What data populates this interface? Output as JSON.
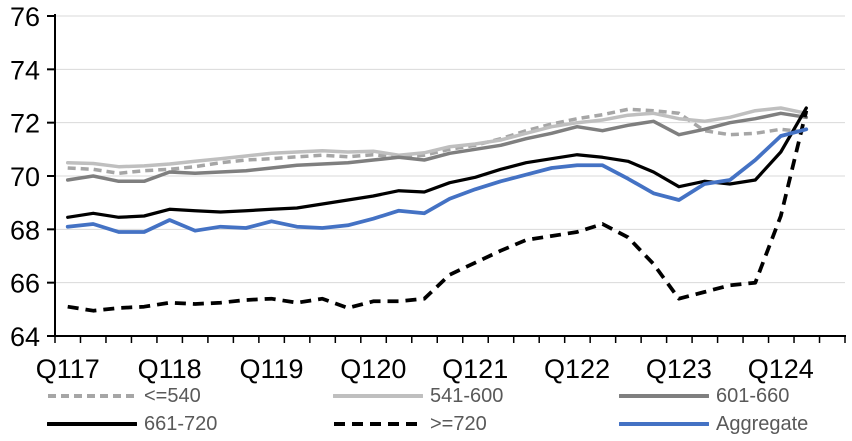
{
  "chart_data": {
    "type": "line",
    "title": "",
    "xlabel": "",
    "ylabel": "",
    "ylim": [
      64,
      76
    ],
    "y_ticks": [
      64,
      66,
      68,
      70,
      72,
      74,
      76
    ],
    "grid": true,
    "legend_position": "bottom",
    "x_tick_labels": [
      "Q117",
      "Q118",
      "Q119",
      "Q120",
      "Q121",
      "Q122",
      "Q123",
      "Q124"
    ],
    "categories": [
      "Q117",
      "Q217",
      "Q317",
      "Q417",
      "Q118",
      "Q218",
      "Q318",
      "Q418",
      "Q119",
      "Q219",
      "Q319",
      "Q419",
      "Q120",
      "Q220",
      "Q320",
      "Q420",
      "Q121",
      "Q221",
      "Q321",
      "Q421",
      "Q122",
      "Q222",
      "Q322",
      "Q422",
      "Q123",
      "Q223",
      "Q323",
      "Q423",
      "Q124",
      "Q224"
    ],
    "series": [
      {
        "name": "<=540",
        "color": "#A6A6A6",
        "dash": "8 5",
        "width": 3.5,
        "values": [
          70.3,
          70.25,
          70.1,
          70.2,
          70.25,
          70.35,
          70.5,
          70.6,
          70.65,
          70.72,
          70.78,
          70.72,
          70.8,
          70.7,
          70.78,
          71.0,
          71.15,
          71.4,
          71.7,
          71.95,
          72.15,
          72.3,
          72.5,
          72.45,
          72.35,
          71.7,
          71.55,
          71.6,
          71.75,
          71.65
        ]
      },
      {
        "name": "541-600",
        "color": "#BFBFBF",
        "dash": "",
        "width": 3.5,
        "values": [
          70.5,
          70.47,
          70.35,
          70.38,
          70.45,
          70.55,
          70.65,
          70.75,
          70.85,
          70.9,
          70.95,
          70.9,
          70.93,
          70.78,
          70.87,
          71.1,
          71.2,
          71.35,
          71.6,
          71.85,
          72.0,
          72.1,
          72.28,
          72.35,
          72.15,
          72.05,
          72.2,
          72.45,
          72.55,
          72.35
        ]
      },
      {
        "name": "601-660",
        "color": "#7F7F7F",
        "dash": "",
        "width": 3.5,
        "values": [
          69.85,
          70.0,
          69.8,
          69.8,
          70.15,
          70.1,
          70.15,
          70.2,
          70.3,
          70.4,
          70.45,
          70.5,
          70.6,
          70.7,
          70.6,
          70.85,
          71.0,
          71.15,
          71.4,
          71.6,
          71.85,
          71.7,
          71.9,
          72.05,
          71.55,
          71.75,
          72.0,
          72.15,
          72.35,
          72.2
        ]
      },
      {
        "name": "661-720",
        "color": "#000000",
        "dash": "",
        "width": 3.25,
        "values": [
          68.45,
          68.6,
          68.45,
          68.5,
          68.75,
          68.7,
          68.65,
          68.7,
          68.75,
          68.8,
          68.95,
          69.1,
          69.25,
          69.45,
          69.4,
          69.75,
          69.95,
          70.25,
          70.5,
          70.65,
          70.8,
          70.7,
          70.55,
          70.15,
          69.6,
          69.8,
          69.7,
          69.85,
          70.9,
          72.55
        ]
      },
      {
        "name": ">=720",
        "color": "#000000",
        "dash": "11 7",
        "width": 3.75,
        "values": [
          65.1,
          64.95,
          65.05,
          65.1,
          65.25,
          65.2,
          65.25,
          65.35,
          65.4,
          65.25,
          65.4,
          65.05,
          65.3,
          65.3,
          65.4,
          66.3,
          66.75,
          67.2,
          67.6,
          67.75,
          67.9,
          68.2,
          67.7,
          66.7,
          65.4,
          65.65,
          65.9,
          66.0,
          68.5,
          72.45
        ]
      },
      {
        "name": "Aggregate",
        "color": "#4472C4",
        "dash": "",
        "width": 3.75,
        "values": [
          68.1,
          68.2,
          67.9,
          67.9,
          68.35,
          67.95,
          68.1,
          68.05,
          68.3,
          68.1,
          68.05,
          68.15,
          68.4,
          68.7,
          68.6,
          69.15,
          69.5,
          69.8,
          70.05,
          70.3,
          70.4,
          70.4,
          69.9,
          69.35,
          69.1,
          69.7,
          69.85,
          70.6,
          71.5,
          71.75
        ]
      }
    ],
    "colors": {
      "grid": "#D9D9D9",
      "axis": "#000000",
      "axis_label_text": "#000000",
      "legend_text": "#595959",
      "background": "#FFFFFF"
    }
  }
}
